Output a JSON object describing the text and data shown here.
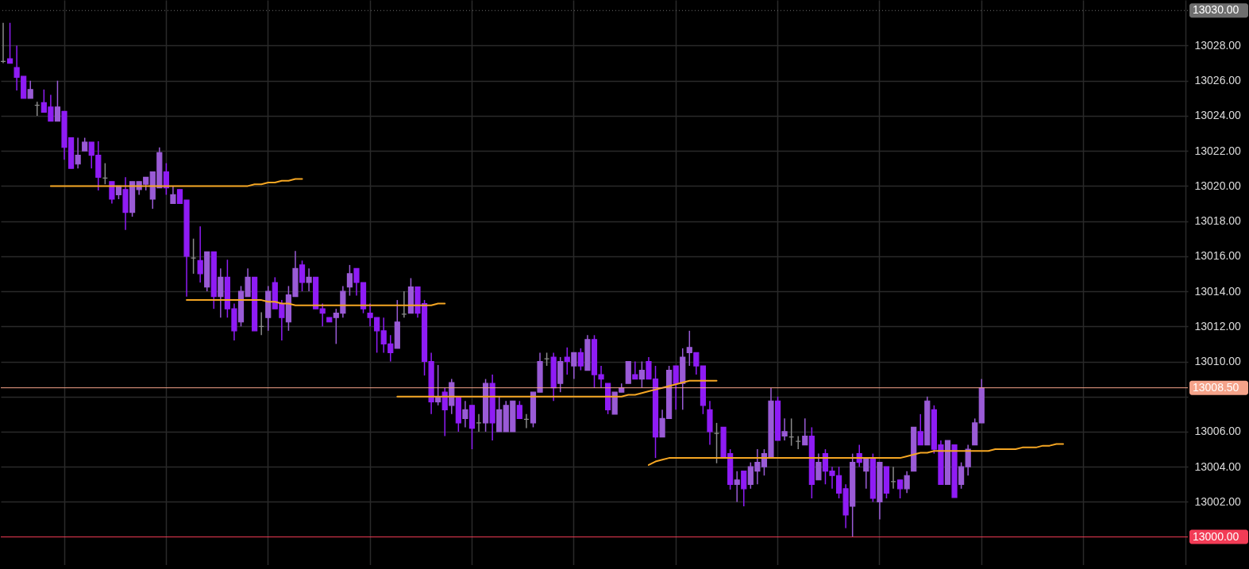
{
  "chart_data": {
    "type": "candlestick",
    "categories": [
      null,
      null,
      null,
      null,
      null,
      null,
      null,
      null,
      null,
      null,
      null,
      null,
      null,
      null,
      null,
      null,
      null,
      null,
      null,
      null,
      null,
      null,
      null,
      null,
      null,
      null,
      null,
      null,
      null,
      null,
      null,
      null,
      null,
      null,
      null,
      null,
      null,
      null,
      null,
      null,
      null,
      null,
      null,
      null,
      null,
      null,
      null,
      null,
      null,
      null,
      null,
      null,
      null,
      null,
      null,
      null,
      null,
      null,
      null,
      null,
      null,
      null,
      null,
      null,
      null,
      null,
      null,
      null,
      null,
      null,
      null,
      null,
      null,
      null,
      null,
      null,
      null,
      null,
      null,
      null,
      null,
      null,
      null,
      null,
      null,
      null,
      null,
      null,
      null,
      null,
      null,
      null,
      null,
      null,
      null,
      null,
      null,
      null,
      null,
      null,
      null,
      null,
      null,
      null,
      null,
      null,
      null,
      null,
      null,
      null,
      null,
      null,
      null,
      null,
      null,
      null,
      null,
      null,
      null,
      null,
      null,
      null,
      null,
      null,
      null,
      null,
      null,
      null,
      null,
      null,
      null,
      null,
      null,
      null,
      null,
      null,
      null,
      null,
      null,
      null,
      null,
      null,
      null,
      null,
      null,
      null,
      null,
      null,
      null,
      null,
      null,
      null,
      null,
      null,
      null,
      null,
      null,
      null,
      null,
      null,
      null,
      null,
      null,
      null,
      null,
      null,
      null,
      null,
      null,
      null,
      null,
      null,
      null,
      null,
      null
    ],
    "ohlc": [
      [
        13027.1,
        13029.3,
        13027.0,
        13027.1
      ],
      [
        13027.25,
        13029.3,
        13027.0,
        13027.0
      ],
      [
        13026.75,
        13028.0,
        13025.45,
        13026.2
      ],
      [
        13026.25,
        13026.25,
        13025.0,
        13025.0
      ],
      [
        13025.0,
        13026.0,
        13025.0,
        13025.5
      ],
      [
        13024.6,
        13024.8,
        13024.0,
        13024.6
      ],
      [
        13024.75,
        13025.5,
        13024.2,
        13024.2
      ],
      [
        13024.5,
        13025.2,
        13023.7,
        13023.7
      ],
      [
        13023.7,
        13026.0,
        13023.7,
        13024.5
      ],
      [
        13024.25,
        13024.25,
        13021.5,
        13022.2
      ],
      [
        13022.75,
        13022.75,
        13021.0,
        13021.0
      ],
      [
        13021.25,
        13022.75,
        13021.0,
        13021.75
      ],
      [
        13022.0,
        13022.75,
        13022.0,
        13022.5
      ],
      [
        13022.5,
        13022.5,
        13021.0,
        13021.75
      ],
      [
        13021.75,
        13022.55,
        13019.75,
        13020.5
      ],
      [
        13020.45,
        13021.3,
        13020.1,
        13020.45
      ],
      [
        13020.25,
        13020.25,
        13019.0,
        13019.25
      ],
      [
        13019.5,
        13020.0,
        13019.25,
        13020.0
      ],
      [
        13019.8,
        13020.5,
        13017.5,
        13018.5
      ],
      [
        13018.5,
        13020.25,
        13018.25,
        13020.25
      ],
      [
        13019.8,
        13020.25,
        13019.5,
        13020.25
      ],
      [
        13020.1,
        13020.5,
        13019.75,
        13020.5
      ],
      [
        13019.25,
        13020.8,
        13018.7,
        13020.8
      ],
      [
        13019.9,
        13022.2,
        13019.9,
        13021.9
      ],
      [
        13020.8,
        13021.3,
        13019.5,
        13019.9
      ],
      [
        13019.0,
        13020.0,
        13019.0,
        13019.5
      ],
      [
        13019.8,
        13019.8,
        13019.0,
        13019.0
      ],
      [
        13019.2,
        13019.2,
        13013.7,
        13016.0
      ],
      [
        13015.9,
        13017.0,
        13015.0,
        13015.9
      ],
      [
        13015.75,
        13017.7,
        13014.5,
        13015.0
      ],
      [
        13014.25,
        13016.25,
        13014.0,
        13016.25
      ],
      [
        13016.25,
        13016.25,
        13013.0,
        13013.7
      ],
      [
        13013.7,
        13015.3,
        13012.5,
        13014.8
      ],
      [
        13014.8,
        13015.8,
        13012.5,
        13013.0
      ],
      [
        13013.0,
        13013.3,
        13011.2,
        13011.75
      ],
      [
        13012.25,
        13014.3,
        13012.0,
        13014.0
      ],
      [
        13013.7,
        13015.3,
        13013.7,
        13014.8
      ],
      [
        13014.8,
        13014.8,
        13011.75,
        13011.75
      ],
      [
        13012.0,
        13012.8,
        13011.5,
        13012.0
      ],
      [
        13012.5,
        13014.3,
        13011.75,
        13014.0
      ],
      [
        13014.5,
        13014.8,
        13013.0,
        13013.0
      ],
      [
        13013.3,
        13013.5,
        13011.2,
        13012.5
      ],
      [
        13012.25,
        13014.3,
        13011.75,
        13013.8
      ],
      [
        13013.7,
        13016.3,
        13013.7,
        13015.3
      ],
      [
        13015.5,
        13015.75,
        13014.0,
        13014.5
      ],
      [
        13014.5,
        13015.3,
        13014.0,
        13014.8
      ],
      [
        13014.8,
        13014.8,
        13013.0,
        13013.0
      ],
      [
        13013.0,
        13013.3,
        13012.0,
        13012.75
      ],
      [
        13012.5,
        13012.5,
        13012.25,
        13012.25
      ],
      [
        13012.5,
        13013.0,
        13011.0,
        13012.75
      ],
      [
        13012.75,
        13014.3,
        13012.5,
        13014.0
      ],
      [
        13014.25,
        13015.5,
        13013.75,
        13015.0
      ],
      [
        13015.3,
        13015.3,
        13013.75,
        13014.5
      ],
      [
        13014.5,
        13014.5,
        13012.75,
        13013.0
      ],
      [
        13012.75,
        13013.3,
        13012.0,
        13012.5
      ],
      [
        13012.5,
        13012.5,
        13010.5,
        13011.75
      ],
      [
        13011.75,
        13012.5,
        13010.5,
        13011.0
      ],
      [
        13011.0,
        13011.5,
        13010.0,
        13010.5
      ],
      [
        13010.75,
        13013.5,
        13010.75,
        13012.25
      ],
      [
        13012.7,
        13014.0,
        13012.5,
        13012.7
      ],
      [
        13012.75,
        13014.75,
        13012.75,
        13014.25
      ],
      [
        13014.25,
        13014.25,
        13012.5,
        13012.75
      ],
      [
        13013.3,
        13013.5,
        13009.2,
        13010.0
      ],
      [
        13010.0,
        13010.5,
        13007.0,
        13007.7
      ],
      [
        13007.7,
        13009.8,
        13007.5,
        13008.0
      ],
      [
        13008.25,
        13008.5,
        13005.75,
        13007.25
      ],
      [
        13007.5,
        13009.0,
        13007.0,
        13008.8
      ],
      [
        13008.0,
        13008.0,
        13006.0,
        13006.5
      ],
      [
        13006.75,
        13007.75,
        13006.25,
        13007.25
      ],
      [
        13007.5,
        13007.5,
        13005.0,
        13006.2
      ],
      [
        13006.5,
        13007.0,
        13006.0,
        13006.5
      ],
      [
        13006.5,
        13009.0,
        13006.0,
        13008.75
      ],
      [
        13008.75,
        13009.25,
        13005.5,
        13006.5
      ],
      [
        13006.0,
        13008.0,
        13006.0,
        13007.25
      ],
      [
        13006.0,
        13007.75,
        13006.0,
        13007.5
      ],
      [
        13006.0,
        13007.75,
        13006.0,
        13007.75
      ],
      [
        13007.5,
        13007.75,
        13006.75,
        13006.75
      ],
      [
        13006.7,
        13007.0,
        13006.2,
        13006.7
      ],
      [
        13006.5,
        13008.25,
        13006.25,
        13008.25
      ],
      [
        13008.25,
        13010.5,
        13008.25,
        13010.0
      ],
      [
        13010.15,
        13010.5,
        13009.75,
        13010.15
      ],
      [
        13010.25,
        13010.5,
        13007.75,
        13008.5
      ],
      [
        13008.75,
        13010.25,
        13008.25,
        13010.0
      ],
      [
        13010.25,
        13010.8,
        13009.25,
        13010.0
      ],
      [
        13009.75,
        13010.5,
        13009.0,
        13010.5
      ],
      [
        13010.5,
        13010.75,
        13009.5,
        13009.75
      ],
      [
        13009.5,
        13011.5,
        13009.5,
        13011.25
      ],
      [
        13011.25,
        13011.5,
        13008.5,
        13009.25
      ],
      [
        13009.25,
        13009.75,
        13008.5,
        13009.0
      ],
      [
        13008.75,
        13008.75,
        13007.0,
        13007.25
      ],
      [
        13007.0,
        13008.25,
        13007.0,
        13008.25
      ],
      [
        13008.25,
        13008.75,
        13008.25,
        13008.5
      ],
      [
        13008.75,
        13010.0,
        13008.75,
        13010.0
      ],
      [
        13009.25,
        13010.0,
        13009.0,
        13009.0
      ],
      [
        13009.0,
        13010.0,
        13008.5,
        13009.5
      ],
      [
        13010.0,
        13010.25,
        13009.0,
        13009.0
      ],
      [
        13009.0,
        13009.75,
        13004.5,
        13005.7
      ],
      [
        13005.7,
        13007.25,
        13005.7,
        13006.75
      ],
      [
        13006.75,
        13009.75,
        13006.75,
        13009.5
      ],
      [
        13009.75,
        13009.75,
        13007.25,
        13008.75
      ],
      [
        13008.75,
        13010.75,
        13007.25,
        13010.25
      ],
      [
        13010.5,
        13011.75,
        13009.75,
        13010.8
      ],
      [
        13010.5,
        13010.5,
        13009.25,
        13009.75
      ],
      [
        13009.75,
        13009.75,
        13007.0,
        13007.5
      ],
      [
        13007.25,
        13007.75,
        13005.25,
        13006.0
      ],
      [
        13005.9,
        13006.5,
        13004.2,
        13005.9
      ],
      [
        13006.25,
        13006.25,
        13004.5,
        13004.5
      ],
      [
        13004.75,
        13005.0,
        13002.7,
        13003.0
      ],
      [
        13003.0,
        13003.75,
        13002.0,
        13003.25
      ],
      [
        13003.75,
        13003.75,
        13001.75,
        13002.75
      ],
      [
        13003.0,
        13004.25,
        13002.75,
        13004.0
      ],
      [
        13003.75,
        13005.0,
        13003.0,
        13004.25
      ],
      [
        13004.0,
        13005.0,
        13003.5,
        13004.75
      ],
      [
        13004.5,
        13008.5,
        13004.5,
        13007.75
      ],
      [
        13007.75,
        13008.0,
        13005.5,
        13005.5
      ],
      [
        13005.75,
        13006.75,
        13005.5,
        13006.0
      ],
      [
        13005.7,
        13006.75,
        13005.2,
        13005.7
      ],
      [
        13005.45,
        13005.75,
        13005.0,
        13005.45
      ],
      [
        13005.25,
        13006.75,
        13005.25,
        13005.75
      ],
      [
        13005.75,
        13006.25,
        13002.2,
        13003.0
      ],
      [
        13003.25,
        13004.75,
        13003.25,
        13004.25
      ],
      [
        13004.75,
        13005.0,
        13003.0,
        13003.75
      ],
      [
        13003.75,
        13004.0,
        13002.75,
        13003.5
      ],
      [
        13003.5,
        13004.0,
        13002.2,
        13002.5
      ],
      [
        13002.75,
        13003.0,
        13000.5,
        13001.25
      ],
      [
        13001.75,
        13004.75,
        13000.0,
        13004.25
      ],
      [
        13004.75,
        13005.25,
        13004.0,
        13004.25
      ],
      [
        13003.75,
        13004.5,
        13002.75,
        13004.5
      ],
      [
        13004.5,
        13004.75,
        13002.0,
        13002.2
      ],
      [
        13002.0,
        13004.25,
        13001.0,
        13004.25
      ],
      [
        13004.0,
        13004.0,
        13002.2,
        13002.5
      ],
      [
        13003.15,
        13004.0,
        13002.75,
        13003.15
      ],
      [
        13003.25,
        13003.25,
        13002.2,
        13002.75
      ],
      [
        13002.75,
        13003.75,
        13002.5,
        13003.5
      ],
      [
        13003.75,
        13006.25,
        13003.75,
        13006.25
      ],
      [
        13006.0,
        13007.0,
        13005.25,
        13005.25
      ],
      [
        13005.25,
        13008.0,
        13005.25,
        13007.75
      ],
      [
        13007.25,
        13007.5,
        13004.75,
        13005.0
      ],
      [
        13005.25,
        13005.5,
        13003.0,
        13003.0
      ],
      [
        13003.0,
        13005.5,
        13003.0,
        13005.5
      ],
      [
        13005.25,
        13005.25,
        13002.25,
        13002.25
      ],
      [
        13003.0,
        13004.25,
        13002.75,
        13004.0
      ],
      [
        13004.0,
        13005.25,
        13003.5,
        13005.0
      ],
      [
        13005.25,
        13006.75,
        13005.25,
        13006.5
      ],
      [
        13006.5,
        13009.0,
        13006.5,
        13008.5
      ],
      null,
      null,
      null,
      null,
      null,
      null,
      null,
      null,
      null,
      null,
      null,
      null,
      null,
      null,
      null,
      null,
      null,
      null,
      null,
      null,
      null,
      null,
      null,
      null,
      null,
      null,
      null,
      null,
      null,
      null
    ],
    "colors": [
      "#8a8a8a",
      "#8f1cf5",
      "#8f1cf5",
      "#8f1cf5",
      "#9a5bd6",
      "#8a8a8a",
      "#8f1cf5",
      "#8f1cf5",
      "#9a5bd6",
      "#8f1cf5",
      "#8f1cf5",
      "#9a5bd6",
      "#9a5bd6",
      "#8f1cf5",
      "#8f1cf5",
      "#8a8a8a",
      "#8f1cf5",
      "#9a5bd6",
      "#8f1cf5",
      "#9a5bd6",
      "#9a5bd6",
      "#9a5bd6",
      "#9a5bd6",
      "#9a5bd6",
      "#8f1cf5",
      "#9a5bd6",
      "#8f1cf5",
      "#8f1cf5",
      "#8a8a8a",
      "#8f1cf5",
      "#9a5bd6",
      "#8f1cf5",
      "#9a5bd6",
      "#8f1cf5",
      "#8f1cf5",
      "#9a5bd6",
      "#9a5bd6",
      "#8f1cf5",
      "#8a8a8a",
      "#9a5bd6",
      "#8f1cf5",
      "#8f1cf5",
      "#9a5bd6",
      "#9a5bd6",
      "#8f1cf5",
      "#9a5bd6",
      "#8f1cf5",
      "#8f1cf5",
      "#8f1cf5",
      "#9a5bd6",
      "#9a5bd6",
      "#9a5bd6",
      "#8f1cf5",
      "#8f1cf5",
      "#8f1cf5",
      "#8f1cf5",
      "#8f1cf5",
      "#8f1cf5",
      "#9a5bd6",
      "#8a8a8a",
      "#9a5bd6",
      "#8f1cf5",
      "#8f1cf5",
      "#8f1cf5",
      "#9a5bd6",
      "#8f1cf5",
      "#9a5bd6",
      "#8f1cf5",
      "#9a5bd6",
      "#8f1cf5",
      "#8a8a8a",
      "#9a5bd6",
      "#8f1cf5",
      "#9a5bd6",
      "#9a5bd6",
      "#9a5bd6",
      "#8f1cf5",
      "#8a8a8a",
      "#9a5bd6",
      "#9a5bd6",
      "#8a8a8a",
      "#8f1cf5",
      "#9a5bd6",
      "#8f1cf5",
      "#9a5bd6",
      "#8f1cf5",
      "#9a5bd6",
      "#8f1cf5",
      "#8f1cf5",
      "#8f1cf5",
      "#9a5bd6",
      "#9a5bd6",
      "#9a5bd6",
      "#8f1cf5",
      "#9a5bd6",
      "#8f1cf5",
      "#8f1cf5",
      "#9a5bd6",
      "#9a5bd6",
      "#8f1cf5",
      "#9a5bd6",
      "#9a5bd6",
      "#8f1cf5",
      "#8f1cf5",
      "#8f1cf5",
      "#8a8a8a",
      "#8f1cf5",
      "#8f1cf5",
      "#9a5bd6",
      "#8f1cf5",
      "#9a5bd6",
      "#9a5bd6",
      "#9a5bd6",
      "#9a5bd6",
      "#8f1cf5",
      "#9a5bd6",
      "#8a8a8a",
      "#8a8a8a",
      "#9a5bd6",
      "#8f1cf5",
      "#9a5bd6",
      "#8f1cf5",
      "#8f1cf5",
      "#8f1cf5",
      "#8f1cf5",
      "#9a5bd6",
      "#8f1cf5",
      "#9a5bd6",
      "#8f1cf5",
      "#9a5bd6",
      "#8f1cf5",
      "#8a8a8a",
      "#8f1cf5",
      "#9a5bd6",
      "#9a5bd6",
      "#8f1cf5",
      "#9a5bd6",
      "#8f1cf5",
      "#8f1cf5",
      "#9a5bd6",
      "#8f1cf5",
      "#9a5bd6",
      "#9a5bd6",
      "#9a5bd6",
      "#9a5bd6",
      null,
      null,
      null,
      null,
      null,
      null,
      null,
      null,
      null,
      null,
      null,
      null,
      null,
      null,
      null,
      null,
      null,
      null,
      null,
      null,
      null,
      null,
      null,
      null,
      null,
      null,
      null,
      null,
      null,
      null
    ],
    "series": [
      {
        "type": "line",
        "color": "#f5a623",
        "values": [
          null,
          null,
          null,
          null,
          null,
          null,
          null,
          13020.0,
          13020.0,
          13020.0,
          13020.0,
          13020.0,
          13020.0,
          13020.0,
          13020.0,
          13020.0,
          13020.0,
          13020.0,
          13020.0,
          13020.0,
          13020.0,
          13020.0,
          13020.0,
          13020.0,
          13020.0,
          13020.0,
          13020.0,
          13020.0,
          13020.0,
          13020.0,
          13020.0,
          13020.0,
          13020.0,
          13020.0,
          13020.0,
          13020.0,
          13020.0,
          13020.1,
          13020.1,
          13020.2,
          13020.2,
          13020.3,
          13020.3,
          13020.4,
          13020.4,
          null,
          null,
          null,
          null,
          null,
          null,
          null,
          null,
          null,
          null,
          null,
          null,
          null,
          null,
          null,
          null,
          null,
          null,
          null,
          null,
          null,
          null,
          null,
          null,
          null,
          null,
          null,
          null,
          null,
          null,
          null,
          null,
          null,
          null,
          null,
          null,
          null,
          null,
          null,
          null,
          null,
          null,
          null,
          null,
          null,
          null,
          null,
          null,
          null,
          null,
          null,
          null,
          null,
          null,
          null,
          null,
          null,
          null,
          null,
          null,
          null,
          null,
          null,
          null,
          null,
          null,
          null,
          null,
          null,
          null,
          null,
          null,
          null,
          null,
          null,
          null,
          null,
          null,
          null,
          null,
          null,
          null,
          null,
          null,
          null,
          null,
          null,
          null,
          null,
          null,
          null,
          null,
          null,
          null,
          null,
          null,
          null,
          null,
          null,
          null,
          null,
          null,
          null,
          null,
          null,
          null,
          null,
          null,
          null,
          null,
          null,
          null,
          null,
          null,
          null,
          null,
          null,
          null,
          null,
          null,
          null,
          null,
          null,
          null,
          null,
          null,
          null,
          null,
          null,
          null
        ]
      },
      {
        "type": "line",
        "color": "#f5a623",
        "values": [
          null,
          null,
          null,
          null,
          null,
          null,
          null,
          null,
          null,
          null,
          null,
          null,
          null,
          null,
          null,
          null,
          null,
          null,
          null,
          null,
          null,
          null,
          null,
          null,
          null,
          null,
          null,
          13013.5,
          13013.5,
          13013.5,
          13013.5,
          13013.5,
          13013.5,
          13013.5,
          13013.5,
          13013.5,
          13013.5,
          13013.5,
          13013.5,
          13013.4,
          13013.4,
          13013.3,
          13013.3,
          13013.2,
          13013.2,
          13013.2,
          13013.2,
          13013.2,
          13013.2,
          13013.2,
          13013.2,
          13013.2,
          13013.2,
          13013.2,
          13013.2,
          13013.2,
          13013.2,
          13013.2,
          13013.2,
          13013.2,
          13013.2,
          13013.2,
          13013.2,
          13013.2,
          13013.3,
          13013.3,
          null,
          null,
          null,
          null,
          null,
          null,
          null,
          null,
          null,
          null,
          null,
          null,
          null,
          null,
          null,
          null,
          null,
          null,
          null,
          null,
          null,
          null,
          null,
          null,
          null,
          null,
          null,
          null,
          null,
          null,
          null,
          null,
          null,
          null,
          null,
          null,
          null,
          null,
          null,
          null,
          null,
          null,
          null,
          null,
          null,
          null,
          null,
          null,
          null,
          null,
          null,
          null,
          null,
          null,
          null,
          null,
          null,
          null,
          null,
          null,
          null,
          null,
          null,
          null,
          null,
          null,
          null,
          null,
          null,
          null,
          null,
          null,
          null,
          null,
          null,
          null,
          null,
          null,
          null,
          null,
          null,
          null,
          null,
          null,
          null,
          null,
          null,
          null,
          null,
          null,
          null,
          null,
          null,
          null,
          null,
          null,
          null,
          null,
          null,
          null,
          null,
          null,
          null,
          null,
          null,
          null,
          null,
          null,
          null
        ]
      },
      {
        "type": "line",
        "color": "#f5a623",
        "values": [
          null,
          null,
          null,
          null,
          null,
          null,
          null,
          null,
          null,
          null,
          null,
          null,
          null,
          null,
          null,
          null,
          null,
          null,
          null,
          null,
          null,
          null,
          null,
          null,
          null,
          null,
          null,
          null,
          null,
          null,
          null,
          null,
          null,
          null,
          null,
          null,
          null,
          null,
          null,
          null,
          null,
          null,
          null,
          null,
          null,
          null,
          null,
          null,
          null,
          null,
          null,
          null,
          null,
          null,
          null,
          null,
          null,
          null,
          13008.0,
          13008.0,
          13008.0,
          13008.0,
          13008.0,
          13008.0,
          13008.0,
          13008.0,
          13008.0,
          13008.0,
          13008.0,
          13008.0,
          13008.0,
          13008.0,
          13008.0,
          13008.0,
          13008.0,
          13008.0,
          13008.0,
          13008.0,
          13008.0,
          13008.0,
          13008.0,
          13008.0,
          13008.0,
          13008.0,
          13008.0,
          13008.0,
          13008.0,
          13008.0,
          13008.0,
          13008.0,
          13008.0,
          13008.0,
          13008.1,
          13008.1,
          13008.2,
          13008.3,
          13008.4,
          13008.5,
          13008.6,
          13008.7,
          13008.8,
          13008.9,
          13008.9,
          13008.9,
          13008.9,
          13008.9,
          null,
          null,
          null,
          null,
          null,
          null,
          null,
          null,
          null,
          null,
          null,
          null,
          null,
          null,
          null,
          null,
          null,
          null,
          null,
          null,
          null,
          null,
          null,
          null,
          null,
          null,
          null,
          null,
          null,
          null,
          null,
          null,
          null,
          null,
          null,
          null,
          null,
          null,
          null,
          null,
          null,
          null,
          null,
          null,
          null,
          null,
          null,
          null,
          null,
          null,
          null,
          null,
          null,
          null,
          null,
          null,
          null,
          null,
          null,
          null,
          null,
          null,
          null,
          null,
          null,
          null,
          null,
          null,
          null
        ]
      },
      {
        "type": "line",
        "color": "#f5a623",
        "values": [
          null,
          null,
          null,
          null,
          null,
          null,
          null,
          null,
          null,
          null,
          null,
          null,
          null,
          null,
          null,
          null,
          null,
          null,
          null,
          null,
          null,
          null,
          null,
          null,
          null,
          null,
          null,
          null,
          null,
          null,
          null,
          null,
          null,
          null,
          null,
          null,
          null,
          null,
          null,
          null,
          null,
          null,
          null,
          null,
          null,
          null,
          null,
          null,
          null,
          null,
          null,
          null,
          null,
          null,
          null,
          null,
          null,
          null,
          null,
          null,
          null,
          null,
          null,
          null,
          null,
          null,
          null,
          null,
          null,
          null,
          null,
          null,
          null,
          null,
          null,
          null,
          null,
          null,
          null,
          null,
          null,
          null,
          null,
          null,
          null,
          null,
          null,
          null,
          null,
          null,
          null,
          null,
          null,
          null,
          null,
          13004.1,
          13004.3,
          13004.4,
          13004.5,
          13004.5,
          13004.5,
          13004.5,
          13004.5,
          13004.5,
          13004.5,
          13004.5,
          13004.5,
          13004.5,
          13004.5,
          13004.5,
          13004.5,
          13004.5,
          13004.5,
          13004.5,
          13004.5,
          13004.5,
          13004.5,
          13004.5,
          13004.5,
          13004.5,
          13004.5,
          13004.5,
          13004.5,
          13004.5,
          13004.5,
          13004.5,
          13004.5,
          13004.5,
          13004.5,
          13004.5,
          13004.5,
          13004.5,
          13004.5,
          13004.6,
          13004.7,
          13004.8,
          13004.8,
          13004.9,
          13004.9,
          13004.9,
          13004.9,
          13004.9,
          13004.9,
          13004.9,
          13004.9,
          13004.9,
          13005.0,
          13005.0,
          13005.0,
          13005.0,
          13005.1,
          13005.1,
          13005.1,
          13005.2,
          13005.2,
          13005.3,
          13005.3,
          null,
          null,
          null,
          null,
          null,
          null,
          null,
          null,
          null,
          null,
          null,
          null,
          null,
          null,
          null,
          null,
          null,
          null
        ]
      }
    ],
    "ylim": [
      12998.4,
      13030.6
    ],
    "yticks": [
      {
        "value": 13002,
        "label": "13002.00"
      },
      {
        "value": 13004,
        "label": "13004.00"
      },
      {
        "value": 13006,
        "label": "13006.00"
      },
      {
        "value": 13008,
        "label": null
      },
      {
        "value": 13010,
        "label": "13010.00"
      },
      {
        "value": 13012,
        "label": "13012.00"
      },
      {
        "value": 13014,
        "label": "13014.00"
      },
      {
        "value": 13016,
        "label": "13016.00"
      },
      {
        "value": 13018,
        "label": "13018.00"
      },
      {
        "value": 13020,
        "label": "13020.00"
      },
      {
        "value": 13022,
        "label": "13022.00"
      },
      {
        "value": 13024,
        "label": "13024.00"
      },
      {
        "value": 13026,
        "label": "13026.00"
      },
      {
        "value": 13028,
        "label": "13028.00"
      }
    ],
    "ref_lines": [
      {
        "axis": "y",
        "value": 13030,
        "label": "13030.00",
        "color": "#6e6e6e",
        "line_style": "dotted"
      },
      {
        "axis": "y",
        "value": 13008.5,
        "label": "13008.50",
        "color": "#f5a38a",
        "line_style": "solid"
      },
      {
        "axis": "y",
        "value": 13000,
        "label": "13000.00",
        "color": "#f23c56",
        "line_style": "solid"
      }
    ],
    "grid": true
  }
}
